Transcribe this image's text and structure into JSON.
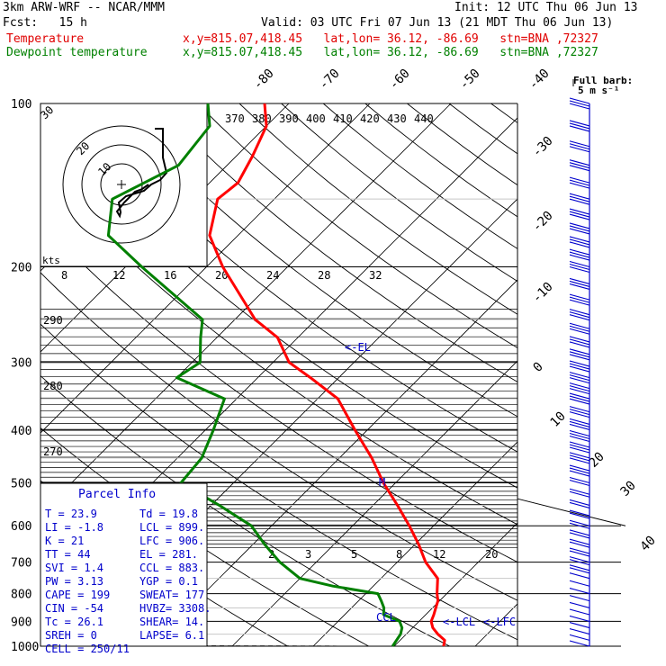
{
  "header": {
    "model": "3km ARW-WRF -- NCAR/MMM",
    "init": "Init: 12 UTC Thu 06 Jun 13",
    "fcst": "Fcst:   15 h",
    "valid": "Valid: 03 UTC Fri 07 Jun 13 (21 MDT Thu 06 Jun 13)",
    "temp_label": "Temperature",
    "temp_loc": "x,y=815.07,418.45   lat,lon= 36.12, -86.69   stn=BNA ,72327",
    "dew_label": "Dewpoint temperature",
    "dew_loc": "x,y=815.07,418.45   lat,lon= 36.12, -86.69   stn=BNA ,72327"
  },
  "colors": {
    "temperature": "#ff0000",
    "dewpoint": "#008000",
    "barbs": "#0000cc",
    "indices": "#0000cc"
  },
  "chart_data": {
    "type": "line",
    "chart_kind": "skew-T log-P diagram",
    "pressure_axis": {
      "label": "",
      "levels_hPa": [
        100,
        200,
        300,
        400,
        500,
        600,
        700,
        800,
        900,
        1000
      ],
      "scale": "log"
    },
    "temperature_isotherms_C": [
      -80,
      -70,
      -60,
      -50,
      -40,
      -30,
      -20,
      -10,
      0,
      10,
      20,
      30,
      40
    ],
    "theta_e_labels": [
      370,
      380,
      390,
      400,
      410,
      420,
      430,
      440
    ],
    "theta_labels": [
      290,
      280,
      270
    ],
    "mixing_ratio_labels": [
      2,
      3,
      5,
      8,
      12,
      20
    ],
    "series": [
      {
        "name": "Temperature",
        "points": [
          [
            1000,
            26.1
          ],
          [
            975,
            25.5
          ],
          [
            950,
            23.9
          ],
          [
            925,
            22.5
          ],
          [
            900,
            21.5
          ],
          [
            875,
            21.0
          ],
          [
            850,
            20.4
          ],
          [
            825,
            19.8
          ],
          [
            800,
            18.8
          ],
          [
            750,
            17.0
          ],
          [
            700,
            13.5
          ],
          [
            650,
            10.5
          ],
          [
            600,
            7.0
          ],
          [
            550,
            3.0
          ],
          [
            500,
            -1.5
          ],
          [
            450,
            -6.0
          ],
          [
            400,
            -11.5
          ],
          [
            350,
            -17.5
          ],
          [
            320,
            -23.5
          ],
          [
            300,
            -28.0
          ],
          [
            270,
            -32.5
          ],
          [
            250,
            -37.5
          ],
          [
            200,
            -48.0
          ],
          [
            175,
            -53.5
          ],
          [
            150,
            -57.0
          ],
          [
            140,
            -56.5
          ],
          [
            125,
            -58.0
          ],
          [
            110,
            -60.0
          ],
          [
            100,
            -63.0
          ]
        ]
      },
      {
        "name": "Dewpoint temperature",
        "points": [
          [
            1000,
            19.8
          ],
          [
            950,
            19.3
          ],
          [
            925,
            18.7
          ],
          [
            900,
            17.6
          ],
          [
            875,
            14.8
          ],
          [
            850,
            14.0
          ],
          [
            825,
            12.8
          ],
          [
            800,
            11.5
          ],
          [
            775,
            5.0
          ],
          [
            750,
            0.0
          ],
          [
            700,
            -4.5
          ],
          [
            650,
            -8.5
          ],
          [
            600,
            -12.5
          ],
          [
            550,
            -19.0
          ],
          [
            500,
            -26.5
          ],
          [
            450,
            -27.0
          ],
          [
            400,
            -29.0
          ],
          [
            350,
            -31.5
          ],
          [
            320,
            -40.0
          ],
          [
            300,
            -39.0
          ],
          [
            270,
            -42.0
          ],
          [
            250,
            -44.0
          ],
          [
            200,
            -58.0
          ],
          [
            175,
            -66.0
          ],
          [
            150,
            -70.0
          ],
          [
            130,
            -66.0
          ],
          [
            110,
            -67.0
          ],
          [
            100,
            -70.0
          ]
        ]
      }
    ],
    "annotations": {
      "el_label": "<-EL",
      "lcl_label": "<-LCL",
      "lfc_label": "<-LFC",
      "ccl_label": "CCL",
      "m_label": "M"
    },
    "full_barb": "Full barb:",
    "full_barb_value": "5 m s⁻¹",
    "hodograph": {
      "rings_label": [
        "30",
        "20",
        "10"
      ],
      "kts_label": "kts",
      "speed_axis": [
        "8",
        "12",
        "16",
        "20",
        "24",
        "28",
        "32"
      ]
    },
    "wind_barbs_levels_hPa": [
      100,
      110,
      120,
      130,
      140,
      150,
      160,
      170,
      180,
      190,
      200,
      215,
      230,
      245,
      260,
      275,
      290,
      305,
      320,
      335,
      350,
      370,
      390,
      410,
      430,
      450,
      475,
      500,
      525,
      550,
      575,
      600,
      625,
      650,
      675,
      700,
      725,
      750,
      775,
      800,
      825,
      850,
      875,
      900,
      925,
      950,
      975,
      1000
    ]
  },
  "parcel_info": {
    "title": "Parcel Info",
    "rows": [
      [
        "T   =    23.9",
        "Td =  19.8"
      ],
      [
        "LI  =    -1.8",
        "LCL =  899."
      ],
      [
        "K   =      21",
        "LFC =  906."
      ],
      [
        "TT  =      44",
        "EL  =  281."
      ],
      [
        "SVI =     1.4",
        "CCL =  883."
      ],
      [
        "PW  =    3.13",
        "YGP =   0.1"
      ],
      [
        "CAPE =    199",
        "SWEAT=   177"
      ],
      [
        "CIN  =    -54",
        "HVBZ= 3308."
      ],
      [
        "Tc  =    26.1",
        "SHEAR=  14."
      ],
      [
        "SREH =      0",
        "LAPSE=   6.1"
      ],
      [
        "CELL = 250/11",
        ""
      ]
    ]
  }
}
